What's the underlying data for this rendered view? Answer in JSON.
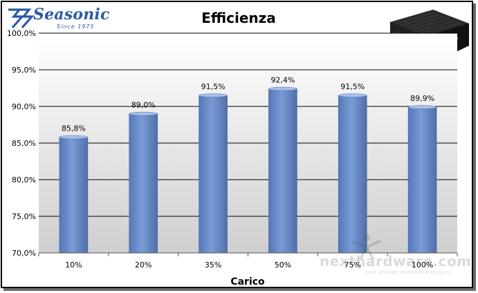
{
  "logo": {
    "brand": "Seasonic",
    "since": "Since 1975"
  },
  "watermark": {
    "text": "nexthardware.com",
    "sub": "your ultimate professional resource"
  },
  "chart_data": {
    "type": "bar",
    "title": "Efficienza",
    "xlabel": "Carico",
    "ylabel": "",
    "categories": [
      "10%",
      "20%",
      "35%",
      "50%",
      "75%",
      "100%"
    ],
    "values": [
      85.8,
      89.0,
      91.5,
      92.4,
      91.5,
      89.9
    ],
    "value_labels": [
      "85,8%",
      "89,0%",
      "91,5%",
      "92,4%",
      "91,5%",
      "89,9%"
    ],
    "ylim": [
      70,
      100
    ],
    "yticks": [
      70,
      75,
      80,
      85,
      90,
      95,
      100
    ],
    "ytick_labels": [
      "70,0%",
      "75,0%",
      "80,0%",
      "85,0%",
      "90,0%",
      "95,0%",
      "100,0%"
    ],
    "grid": true,
    "bar_color": "#6f90cf",
    "legend": "none"
  }
}
